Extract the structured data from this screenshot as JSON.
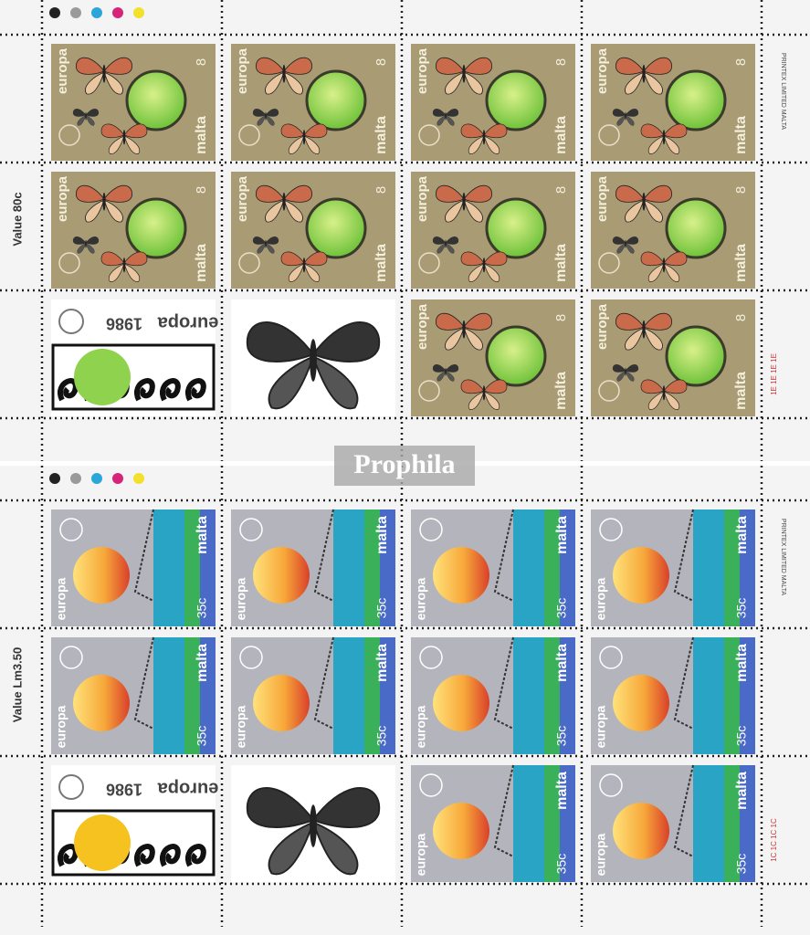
{
  "watermark": "Prophila",
  "sheets": [
    {
      "value_label": "Value 80c",
      "printer": "PRINTEX LIMITED MALTA",
      "cylinder": "1E 1E 1E 1E",
      "stamp": {
        "brand": "europa",
        "country": "malta",
        "denomination": "8"
      },
      "label_tab": {
        "year": "1986",
        "brand": "europa"
      }
    },
    {
      "value_label": "Value Lm3.50",
      "printer": "PRINTEX LIMITED MALTA",
      "cylinder": "1C 1C 1C 1C",
      "stamp": {
        "brand": "europa",
        "country": "malta",
        "denomination": "35c"
      },
      "label_tab": {
        "year": "1986",
        "brand": "europa"
      }
    }
  ]
}
